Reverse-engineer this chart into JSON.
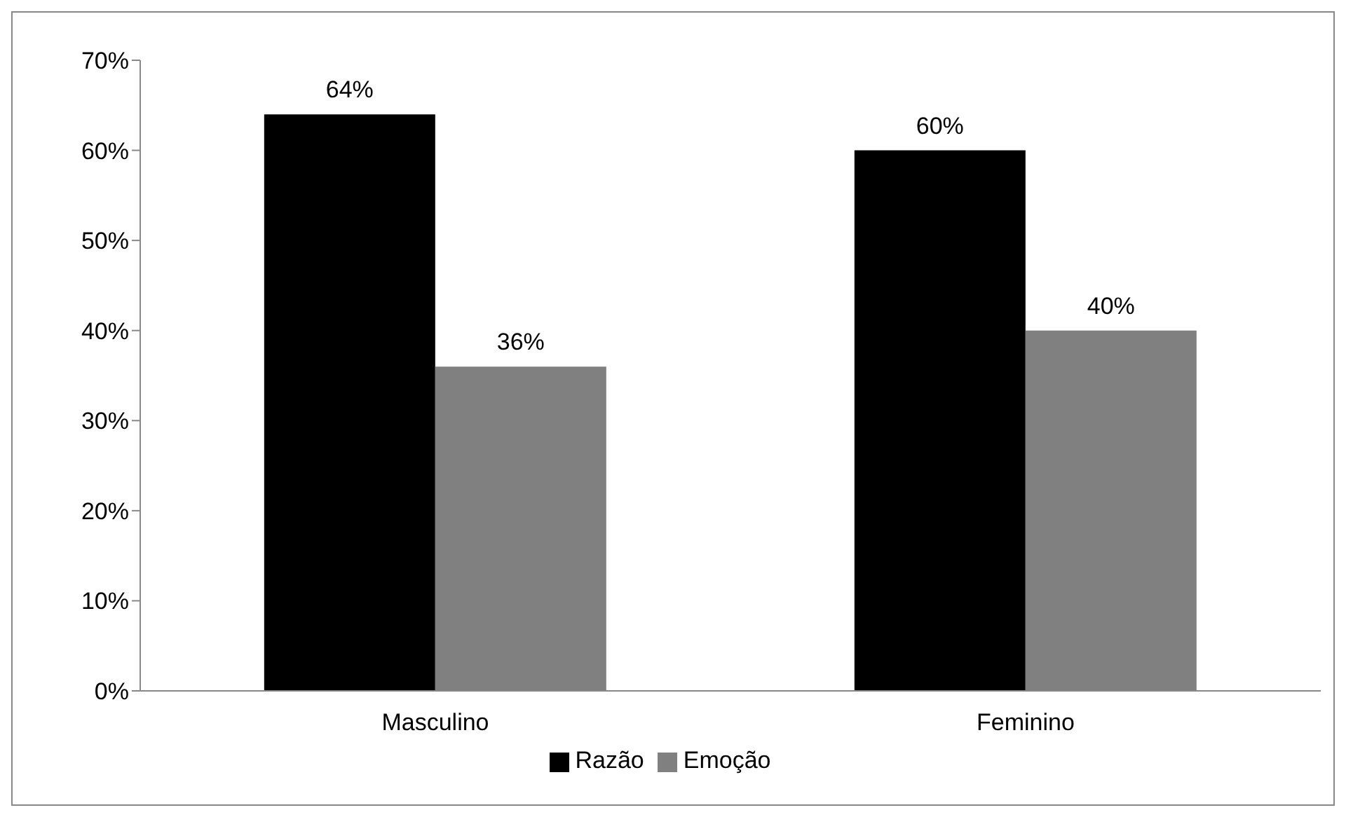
{
  "chart_data": {
    "type": "bar",
    "categories": [
      "Masculino",
      "Feminino"
    ],
    "series": [
      {
        "name": "Razão",
        "color": "#000000",
        "values": [
          64,
          60
        ],
        "value_labels": [
          "64%",
          "60%"
        ]
      },
      {
        "name": "Emoção",
        "color": "#808080",
        "values": [
          36,
          40
        ],
        "value_labels": [
          "36%",
          "40%"
        ]
      }
    ],
    "ylim": [
      0,
      70
    ],
    "yticks": [
      {
        "value": 0,
        "label": "0%"
      },
      {
        "value": 10,
        "label": "10%"
      },
      {
        "value": 20,
        "label": "20%"
      },
      {
        "value": 30,
        "label": "30%"
      },
      {
        "value": 40,
        "label": "40%"
      },
      {
        "value": 50,
        "label": "50%"
      },
      {
        "value": 60,
        "label": "60%"
      },
      {
        "value": 70,
        "label": "70%"
      }
    ],
    "grid": false,
    "legend": "bottom"
  }
}
